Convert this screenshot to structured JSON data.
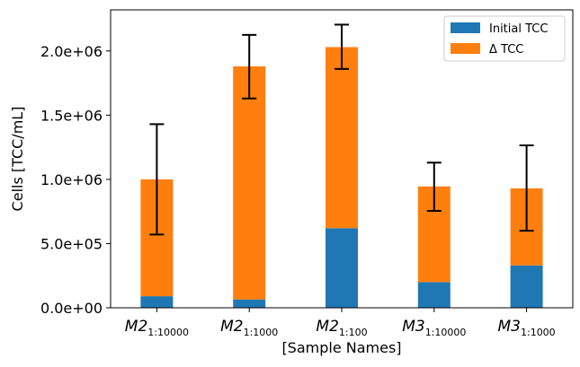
{
  "chart_data": {
    "type": "bar",
    "stacked": true,
    "categories": [
      {
        "base": "M2",
        "sub": "1:10000"
      },
      {
        "base": "M2",
        "sub": "1:1000"
      },
      {
        "base": "M2",
        "sub": "1:100"
      },
      {
        "base": "M3",
        "sub": "1:10000"
      },
      {
        "base": "M3",
        "sub": "1:1000"
      }
    ],
    "series": [
      {
        "name": "Initial TCC",
        "color": "#1f77b4",
        "values": [
          90000,
          65000,
          620000,
          200000,
          330000
        ]
      },
      {
        "name": "Δ TCC",
        "color": "#ff7f0e",
        "values": [
          910000,
          1815000,
          1410000,
          745000,
          600000
        ]
      }
    ],
    "totals": [
      1000000,
      1880000,
      2030000,
      945000,
      930000
    ],
    "error": [
      [
        570000,
        1430000
      ],
      [
        1630000,
        2125000
      ],
      [
        1860000,
        2205000
      ],
      [
        755000,
        1130000
      ],
      [
        600000,
        1265000
      ]
    ],
    "title": "",
    "xlabel": "[Sample Names]",
    "ylabel": "Cells [TCC/mL]",
    "ylim": [
      0,
      2320000
    ],
    "yticks": [
      0,
      500000,
      1000000,
      1500000,
      2000000
    ],
    "ytick_labels": [
      "0.0e+00",
      "5.0e+05",
      "1.0e+06",
      "1.5e+06",
      "2.0e+06"
    ],
    "grid": false,
    "legend_position": "top-right"
  }
}
